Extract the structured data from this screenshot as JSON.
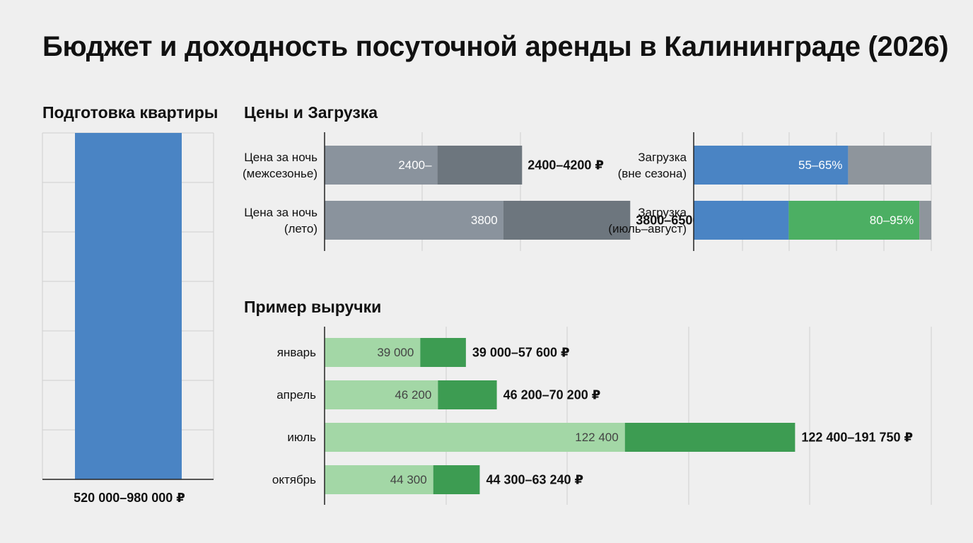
{
  "title": "Бюджет и доходность посуточной аренды в Калининграде (2026)",
  "colors": {
    "background": "#efefef",
    "grid": "#cfcfcf",
    "axis": "#222222",
    "price_low": "#8a939d",
    "price_high": "#6d767e",
    "blue": "#4a84c4",
    "green": "#4caf63",
    "gray_rest": "#8e959c",
    "revenue_low": "#a3d7a6",
    "revenue_high": "#3d9c52"
  },
  "chart_data": [
    {
      "type": "bar",
      "title": "Подготовка квартиры",
      "categories": [
        ""
      ],
      "series": [
        {
          "low": 520000,
          "high": 980000
        }
      ],
      "value_label": "520 000–980 000 ₽",
      "ylim": [
        0,
        980000
      ],
      "grid": true
    },
    {
      "type": "bar",
      "orientation": "horizontal",
      "title": "Цены и Загрузка",
      "categories": [
        "Цена за ночь (межсезонье)",
        "Цена за ночь (лето)"
      ],
      "category_lines": [
        [
          "Цена за ночь",
          "(межсезонье)"
        ],
        [
          "Цена за ночь",
          "(лето)"
        ]
      ],
      "series": [
        {
          "low": 2400,
          "high": 4200,
          "inner_label": "2400–",
          "range_label": "2400–4200 ₽"
        },
        {
          "low": 3800,
          "high": 6500,
          "inner_label": "3800",
          "range_label": "3800–6500 ₽"
        }
      ],
      "xlim": [
        0,
        8000
      ],
      "grid": true
    },
    {
      "type": "bar",
      "orientation": "horizontal",
      "stacked": true,
      "categories": [
        "Загрузка (вне сезона)",
        "Загрузка (июль–август)"
      ],
      "category_lines": [
        [
          "Загрузка",
          "(вне сезона)"
        ],
        [
          "Загрузка",
          "(июль–август)"
        ]
      ],
      "series": [
        {
          "low": 55,
          "high": 65,
          "label": "55–65%"
        },
        {
          "low": 80,
          "high": 95,
          "label": "80–95%"
        }
      ],
      "unit": "%",
      "xlim": [
        0,
        100
      ],
      "grid": true
    },
    {
      "type": "bar",
      "orientation": "horizontal",
      "title": "Пример выручки",
      "categories": [
        "январь",
        "апрель",
        "июль",
        "октябрь"
      ],
      "series": [
        {
          "low": 39000,
          "high": 57600,
          "low_label": "39 000",
          "range_label": "39 000–57 600 ₽"
        },
        {
          "low": 46200,
          "high": 70200,
          "low_label": "46 200",
          "range_label": "46 200–70 200 ₽"
        },
        {
          "low": 122400,
          "high": 191750,
          "low_label": "122 400",
          "range_label": "122 400–191 750 ₽"
        },
        {
          "low": 44300,
          "high": 63240,
          "low_label": "44 300",
          "range_label": "44 300–63 240 ₽"
        }
      ],
      "xlim": [
        0,
        250000
      ],
      "grid": true
    }
  ]
}
